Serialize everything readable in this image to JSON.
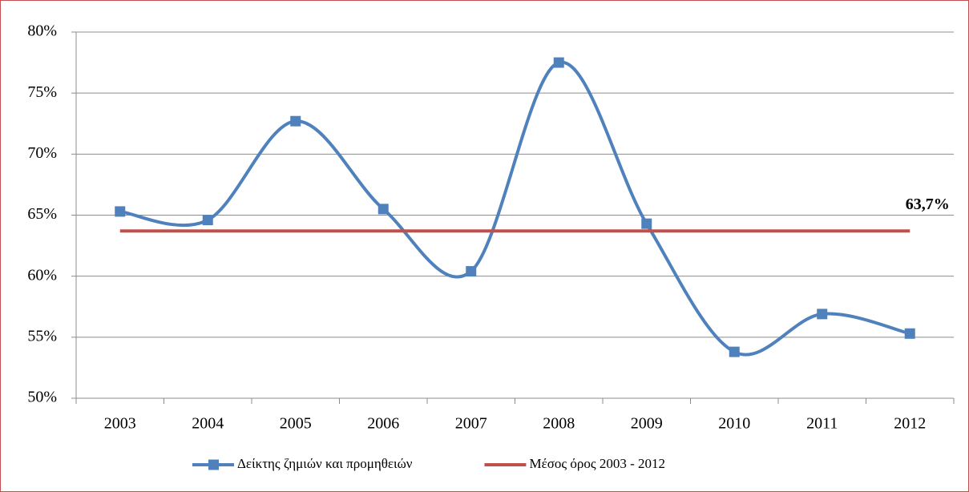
{
  "chart_data": {
    "type": "line",
    "categories": [
      "2003",
      "2004",
      "2005",
      "2006",
      "2007",
      "2008",
      "2009",
      "2010",
      "2011",
      "2012"
    ],
    "series": [
      {
        "name": "Δείκτης ζημιών και προμηθειών",
        "color": "#4f81bd",
        "smooth": true,
        "marker": "square",
        "values": [
          65.3,
          64.6,
          72.7,
          65.5,
          60.4,
          77.5,
          64.3,
          53.8,
          56.9,
          55.3
        ]
      },
      {
        "name": "Μέσος όρος 2003 - 2012",
        "color": "#c0504d",
        "smooth": false,
        "values": [
          63.7,
          63.7,
          63.7,
          63.7,
          63.7,
          63.7,
          63.7,
          63.7,
          63.7,
          63.7
        ],
        "value_labels": [
          null,
          null,
          null,
          null,
          null,
          null,
          null,
          null,
          null,
          "63,7%"
        ]
      }
    ],
    "ylim": [
      50,
      80
    ],
    "yticks": [
      {
        "value": 50,
        "label": "50%"
      },
      {
        "value": 55,
        "label": "55%"
      },
      {
        "value": 60,
        "label": "60%"
      },
      {
        "value": 65,
        "label": "65%"
      },
      {
        "value": 70,
        "label": "70%"
      },
      {
        "value": 75,
        "label": "75%"
      },
      {
        "value": 80,
        "label": "80%"
      }
    ],
    "grid": true,
    "legend": "bottom"
  }
}
